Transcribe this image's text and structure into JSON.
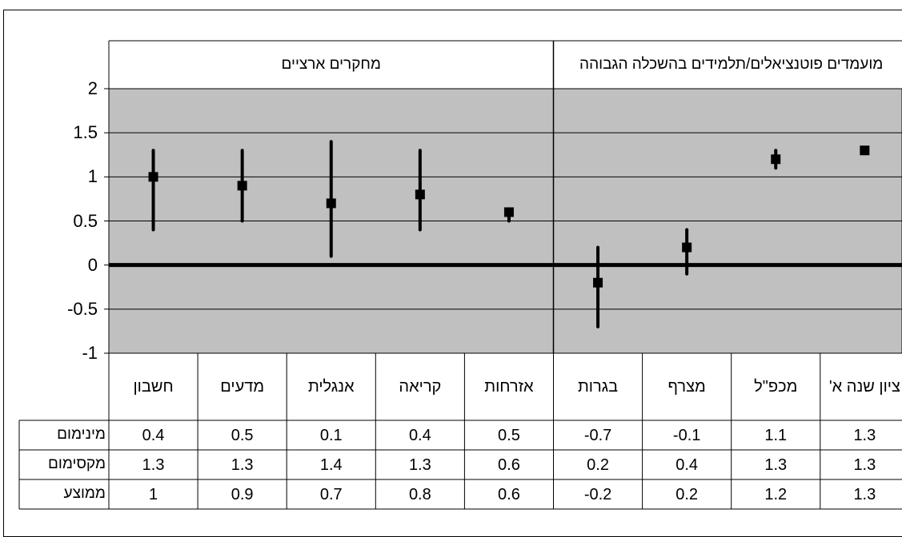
{
  "chart_data": {
    "type": "error-bar",
    "groups": [
      {
        "label": "מחקרים ארציים",
        "span": [
          0,
          4
        ]
      },
      {
        "label": "מועמדים פוטנציאלים/תלמידים בהשכלה הגבוהה",
        "span": [
          5,
          8
        ]
      }
    ],
    "categories": [
      "חשבון",
      "מדעים",
      "אנגלית",
      "קריאה",
      "אזרחות",
      "בגרות",
      "מצרף",
      "מכפ\"ל",
      "ציון שנה א'"
    ],
    "series": [
      {
        "name": "מינימום",
        "values": [
          "0.4",
          "0.5",
          "0.1",
          "0.4",
          "0.5",
          "-0.7",
          "-0.1",
          "1.1",
          "1.3"
        ]
      },
      {
        "name": "מקסימום",
        "values": [
          "1.3",
          "1.3",
          "1.4",
          "1.3",
          "0.6",
          "0.2",
          "0.4",
          "1.3",
          "1.3"
        ]
      },
      {
        "name": "ממוצע",
        "values": [
          "1",
          "0.9",
          "0.7",
          "0.8",
          "0.6",
          "-0.2",
          "0.2",
          "1.2",
          "1.3"
        ]
      }
    ],
    "ylim": [
      -1,
      2
    ],
    "yticks": [
      "2",
      "1.5",
      "1",
      "0.5",
      "0",
      "-0.5",
      "-1"
    ],
    "colors": {
      "plot_bg": "#c0c0c0",
      "marker": "#000000",
      "zero_line": "#000000"
    }
  }
}
